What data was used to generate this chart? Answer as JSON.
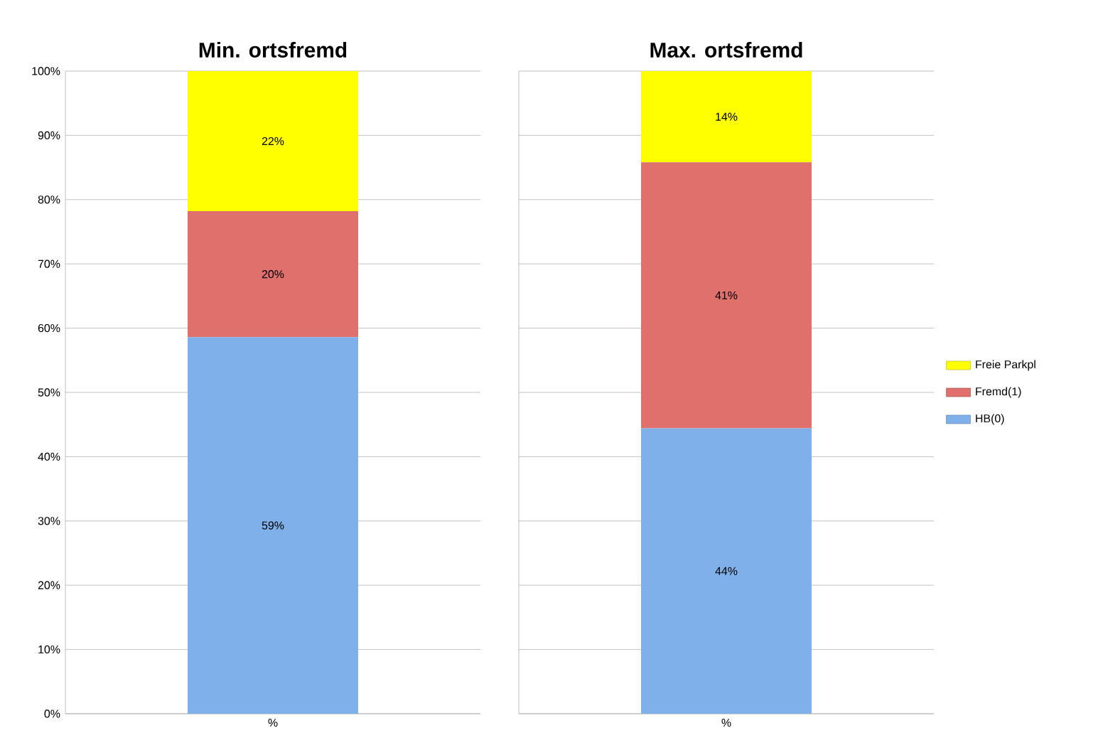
{
  "chart_data": [
    {
      "type": "bar",
      "title": "Min. ortsfremd",
      "stacked": true,
      "categories": [
        "%"
      ],
      "grid": "y",
      "legend": false,
      "ylim": [
        0,
        100
      ],
      "yticks": [
        {
          "value": 0,
          "label": "0%"
        },
        {
          "value": 10,
          "label": "10%"
        },
        {
          "value": 20,
          "label": "20%"
        },
        {
          "value": 30,
          "label": "30%"
        },
        {
          "value": 40,
          "label": "40%"
        },
        {
          "value": 50,
          "label": "50%"
        },
        {
          "value": 60,
          "label": "60%"
        },
        {
          "value": 70,
          "label": "70%"
        },
        {
          "value": 80,
          "label": "80%"
        },
        {
          "value": 90,
          "label": "90%"
        },
        {
          "value": 100,
          "label": "100%"
        }
      ],
      "series": [
        {
          "color": "#7fb0ea",
          "values": [
            58.6
          ],
          "value_labels": [
            "59%"
          ]
        },
        {
          "color": "#e0706b",
          "values": [
            19.6
          ],
          "value_labels": [
            "20%"
          ]
        },
        {
          "color": "#ffff00",
          "values": [
            21.8
          ],
          "value_labels": [
            "22%"
          ]
        }
      ]
    },
    {
      "type": "bar",
      "title": "Max. ortsfremd",
      "stacked": true,
      "categories": [
        "%"
      ],
      "grid": "y",
      "legend": "right",
      "tick_labels": "x",
      "ylim": [
        0,
        100
      ],
      "yticks": [
        {
          "value": 0,
          "label": null
        },
        {
          "value": 10,
          "label": null
        },
        {
          "value": 20,
          "label": null
        },
        {
          "value": 30,
          "label": null
        },
        {
          "value": 40,
          "label": null
        },
        {
          "value": 50,
          "label": null
        },
        {
          "value": 60,
          "label": null
        },
        {
          "value": 70,
          "label": null
        },
        {
          "value": 80,
          "label": null
        },
        {
          "value": 90,
          "label": null
        },
        {
          "value": 100,
          "label": null
        }
      ],
      "series": [
        {
          "name": "HB(0)",
          "color": "#7fb0ea",
          "values": [
            44.4
          ],
          "value_labels": [
            "44%"
          ]
        },
        {
          "name": "Fremd(1)",
          "color": "#e0706b",
          "values": [
            41.4
          ],
          "value_labels": [
            "41%"
          ]
        },
        {
          "name": "Freie Parkpl",
          "color": "#ffff00",
          "values": [
            14.2
          ],
          "value_labels": [
            "14%"
          ]
        }
      ]
    }
  ]
}
